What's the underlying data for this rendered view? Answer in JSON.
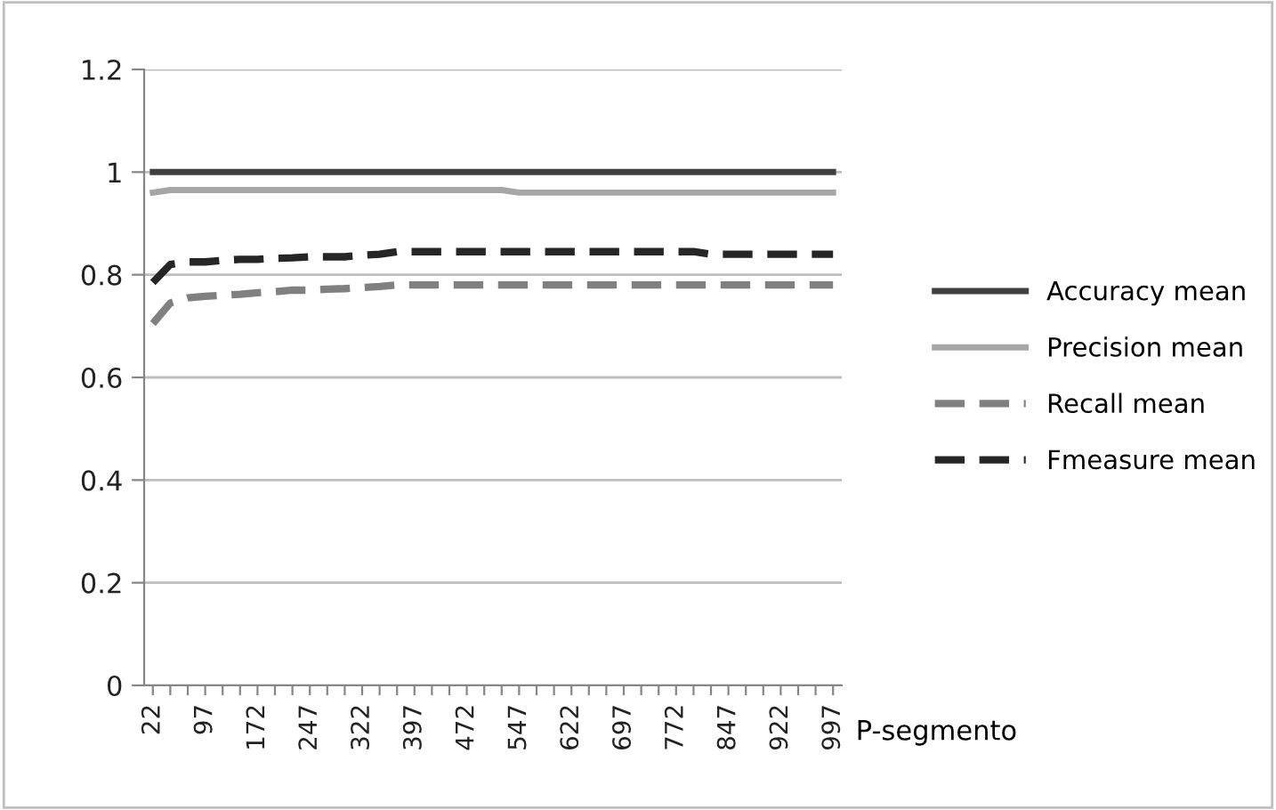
{
  "chart_data": {
    "type": "line",
    "xlabel": "P-segmento",
    "categories": [
      "22",
      null,
      null,
      "97",
      null,
      null,
      "172",
      null,
      null,
      "247",
      null,
      null,
      "322",
      null,
      null,
      "397",
      null,
      null,
      "472",
      null,
      null,
      "547",
      null,
      null,
      "622",
      null,
      null,
      "697",
      null,
      null,
      "772",
      null,
      null,
      "847",
      null,
      null,
      "922",
      null,
      null,
      "997"
    ],
    "series": [
      {
        "name": "Accuracy mean",
        "color": "#404040",
        "line_style": "solid",
        "values": [
          1,
          1,
          1,
          1,
          1,
          1,
          1,
          1,
          1,
          1,
          1,
          1,
          1,
          1,
          1,
          1,
          1,
          1,
          1,
          1,
          1,
          1,
          1,
          1,
          1,
          1,
          1,
          1,
          1,
          1,
          1,
          1,
          1,
          1,
          1,
          1,
          1,
          1,
          1,
          1
        ]
      },
      {
        "name": "Precision mean",
        "color": "#a6a6a6",
        "line_style": "solid",
        "values": [
          0.96,
          0.965,
          0.965,
          0.965,
          0.965,
          0.965,
          0.965,
          0.965,
          0.965,
          0.965,
          0.965,
          0.965,
          0.965,
          0.965,
          0.965,
          0.965,
          0.965,
          0.965,
          0.965,
          0.965,
          0.965,
          0.96,
          0.96,
          0.96,
          0.96,
          0.96,
          0.96,
          0.96,
          0.96,
          0.96,
          0.96,
          0.96,
          0.96,
          0.96,
          0.96,
          0.96,
          0.96,
          0.96,
          0.96,
          0.96
        ]
      },
      {
        "name": "Recall mean",
        "color": "#808080",
        "line_style": "dashed",
        "values": [
          0.705,
          0.745,
          0.755,
          0.758,
          0.76,
          0.762,
          0.765,
          0.767,
          0.77,
          0.77,
          0.772,
          0.773,
          0.775,
          0.777,
          0.78,
          0.78,
          0.78,
          0.78,
          0.78,
          0.78,
          0.78,
          0.78,
          0.78,
          0.78,
          0.78,
          0.78,
          0.78,
          0.78,
          0.78,
          0.78,
          0.78,
          0.78,
          0.78,
          0.78,
          0.78,
          0.78,
          0.78,
          0.78,
          0.78,
          0.78
        ]
      },
      {
        "name": "Fmeasure mean",
        "color": "#262626",
        "line_style": "dashed",
        "values": [
          0.785,
          0.82,
          0.825,
          0.825,
          0.828,
          0.83,
          0.83,
          0.832,
          0.833,
          0.835,
          0.835,
          0.835,
          0.838,
          0.84,
          0.845,
          0.845,
          0.845,
          0.845,
          0.845,
          0.845,
          0.845,
          0.845,
          0.845,
          0.845,
          0.845,
          0.845,
          0.845,
          0.845,
          0.845,
          0.845,
          0.845,
          0.845,
          0.84,
          0.84,
          0.84,
          0.84,
          0.84,
          0.84,
          0.84,
          0.84
        ]
      }
    ],
    "ylim": [
      0,
      1.2
    ],
    "yticks": [
      0,
      0.2,
      0.4,
      0.6,
      0.8,
      1,
      1.2
    ],
    "grid": "y",
    "legend": "right",
    "marker": "none"
  }
}
